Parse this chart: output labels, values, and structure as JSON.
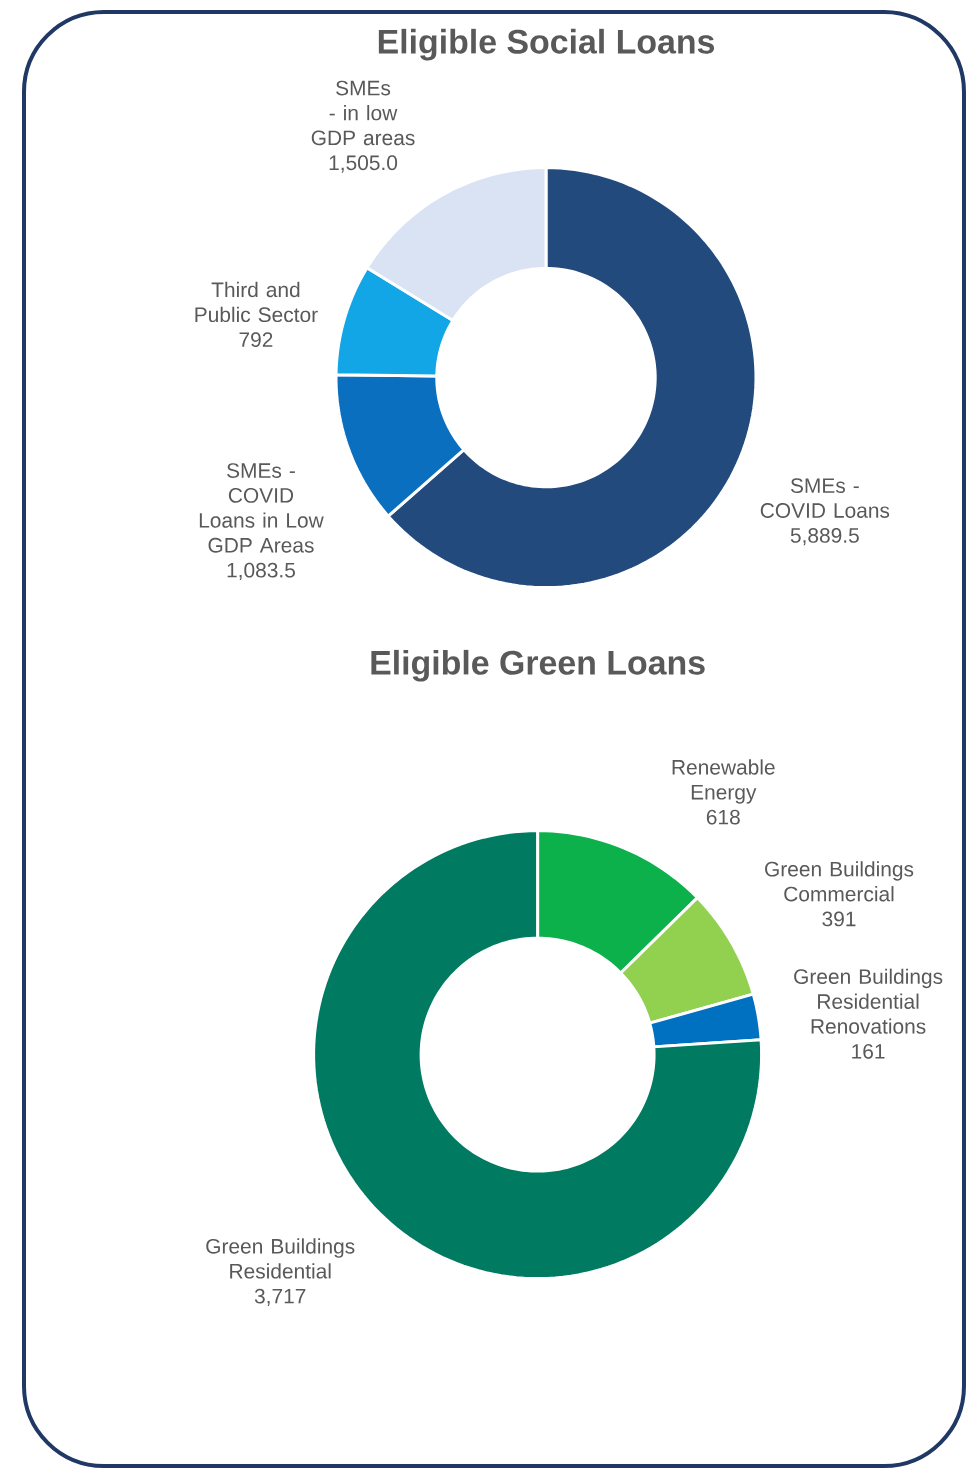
{
  "chart_data": [
    {
      "type": "donut",
      "title": "Eligible Social Loans",
      "categories": [
        "SMEs - COVID Loans",
        "SMEs - COVID Loans in Low GDP Areas",
        "Third and Public Sector",
        "SMEs - in low GDP areas"
      ],
      "values": [
        5889.5,
        1083.5,
        792,
        1505.0
      ],
      "colors": [
        "#234a7d",
        "#0b6fc0",
        "#12a6e6",
        "#dae3f3"
      ],
      "value_labels": [
        "5,889.5",
        "1,083.5",
        "792",
        "1,505.0"
      ]
    },
    {
      "type": "donut",
      "title": "Eligible Green Loans",
      "categories": [
        "Renewable Energy",
        "Green Buildings Commercial",
        "Green Buildings Residential Renovations",
        "Green Buildings Residential"
      ],
      "values": [
        618,
        391,
        161,
        3717
      ],
      "colors": [
        "#0db14b",
        "#92d050",
        "#0070c0",
        "#007a60"
      ],
      "value_labels": [
        "618",
        "391",
        "161",
        "3,717"
      ]
    }
  ]
}
